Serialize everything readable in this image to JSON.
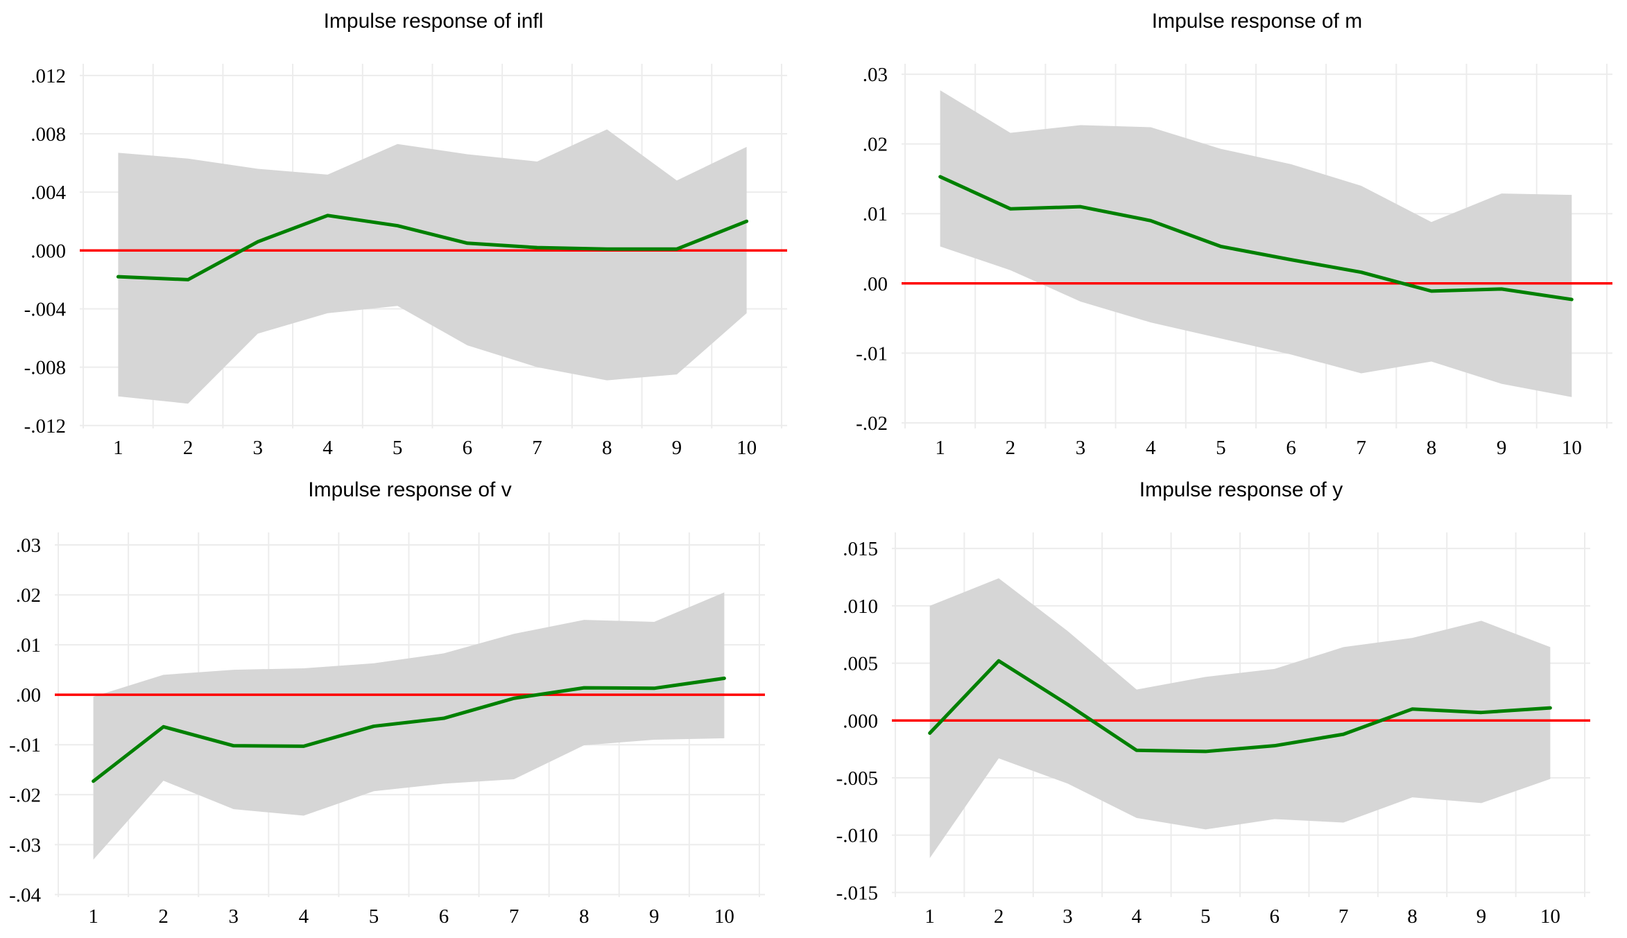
{
  "page": {
    "background": "#ffffff"
  },
  "colors": {
    "response_line": "#008000",
    "zero_line": "#ff0000",
    "confidence_band": "#d6d6d6",
    "gridline": "#ececec",
    "text": "#000000"
  },
  "x_labels": [
    "1",
    "2",
    "3",
    "4",
    "5",
    "6",
    "7",
    "8",
    "9",
    "10"
  ],
  "chart_data": [
    {
      "type": "line",
      "title": "Impulse response of infl",
      "x": [
        1,
        2,
        3,
        4,
        5,
        6,
        7,
        8,
        9,
        10
      ],
      "series": [
        {
          "name": "impulse-response",
          "values": [
            -0.0018,
            -0.002,
            0.0006,
            0.0024,
            0.0017,
            0.0005,
            0.0002,
            0.0001,
            0.0001,
            0.002
          ]
        },
        {
          "name": "confidence-upper",
          "values": [
            0.0067,
            0.0063,
            0.0056,
            0.0052,
            0.0073,
            0.0066,
            0.0061,
            0.0083,
            0.0048,
            0.0071
          ]
        },
        {
          "name": "confidence-lower",
          "values": [
            -0.01,
            -0.0105,
            -0.0057,
            -0.0043,
            -0.0038,
            -0.0065,
            -0.008,
            -0.0089,
            -0.0085,
            -0.0043
          ]
        }
      ],
      "y_ticks": [
        {
          "v": 0.012,
          "label": ".012"
        },
        {
          "v": 0.008,
          "label": ".008"
        },
        {
          "v": 0.004,
          "label": ".004"
        },
        {
          "v": 0.0,
          "label": ".000"
        },
        {
          "v": -0.004,
          "label": "-.004"
        },
        {
          "v": -0.008,
          "label": "-.008"
        },
        {
          "v": -0.012,
          "label": "-.012"
        }
      ],
      "ylim": [
        -0.0122,
        0.0128
      ],
      "xlim": [
        0.45,
        10.58
      ],
      "zero_line": true,
      "grid": true,
      "legend": "none"
    },
    {
      "type": "line",
      "title": "Impulse response of m",
      "x": [
        1,
        2,
        3,
        4,
        5,
        6,
        7,
        8,
        9,
        10
      ],
      "series": [
        {
          "name": "impulse-response",
          "values": [
            0.0153,
            0.0107,
            0.011,
            0.009,
            0.0053,
            0.0034,
            0.0016,
            -0.0011,
            -0.0008,
            -0.0023
          ]
        },
        {
          "name": "confidence-upper",
          "values": [
            0.0277,
            0.0216,
            0.0227,
            0.0224,
            0.0193,
            0.0171,
            0.014,
            0.0088,
            0.0129,
            0.0127
          ]
        },
        {
          "name": "confidence-lower",
          "values": [
            0.0053,
            0.0019,
            -0.0026,
            -0.0056,
            -0.0079,
            -0.0102,
            -0.0129,
            -0.0112,
            -0.0144,
            -0.0163
          ]
        }
      ],
      "y_ticks": [
        {
          "v": 0.03,
          "label": ".03"
        },
        {
          "v": 0.02,
          "label": ".02"
        },
        {
          "v": 0.01,
          "label": ".01"
        },
        {
          "v": 0.0,
          "label": ".00"
        },
        {
          "v": -0.01,
          "label": "-.01"
        },
        {
          "v": -0.02,
          "label": "-.02"
        }
      ],
      "ylim": [
        -0.0208,
        0.0315
      ],
      "xlim": [
        0.45,
        10.58
      ],
      "zero_line": true,
      "grid": true,
      "legend": "none"
    },
    {
      "type": "line",
      "title": "Impulse response of v",
      "x": [
        1,
        2,
        3,
        4,
        5,
        6,
        7,
        8,
        9,
        10
      ],
      "series": [
        {
          "name": "impulse-response",
          "values": [
            -0.0173,
            -0.0064,
            -0.0102,
            -0.0103,
            -0.0063,
            -0.0047,
            -0.0007,
            0.0014,
            0.0013,
            0.0033
          ]
        },
        {
          "name": "confidence-upper",
          "values": [
            -0.0004,
            0.004,
            0.005,
            0.0053,
            0.0063,
            0.0083,
            0.0122,
            0.015,
            0.0146,
            0.0205
          ]
        },
        {
          "name": "confidence-lower",
          "values": [
            -0.033,
            -0.0172,
            -0.0229,
            -0.0242,
            -0.0193,
            -0.0178,
            -0.0169,
            -0.0101,
            -0.009,
            -0.0087
          ]
        }
      ],
      "y_ticks": [
        {
          "v": 0.03,
          "label": ".03"
        },
        {
          "v": 0.02,
          "label": ".02"
        },
        {
          "v": 0.01,
          "label": ".01"
        },
        {
          "v": 0.0,
          "label": ".00"
        },
        {
          "v": -0.01,
          "label": "-.01"
        },
        {
          "v": -0.02,
          "label": "-.02"
        },
        {
          "v": -0.03,
          "label": "-.03"
        },
        {
          "v": -0.04,
          "label": "-.04"
        }
      ],
      "ylim": [
        -0.0405,
        0.0325
      ],
      "xlim": [
        0.45,
        10.58
      ],
      "zero_line": true,
      "grid": true,
      "legend": "none"
    },
    {
      "type": "line",
      "title": "Impulse response of y",
      "x": [
        1,
        2,
        3,
        4,
        5,
        6,
        7,
        8,
        9,
        10
      ],
      "series": [
        {
          "name": "impulse-response",
          "values": [
            -0.0011,
            0.0052,
            0.0014,
            -0.0026,
            -0.0027,
            -0.0022,
            -0.0012,
            0.001,
            0.0007,
            0.0011
          ]
        },
        {
          "name": "confidence-upper",
          "values": [
            0.01,
            0.0124,
            0.0078,
            0.0027,
            0.0038,
            0.0045,
            0.0064,
            0.0072,
            0.0087,
            0.0064
          ]
        },
        {
          "name": "confidence-lower",
          "values": [
            -0.012,
            -0.0033,
            -0.0055,
            -0.0085,
            -0.0095,
            -0.0086,
            -0.0089,
            -0.0067,
            -0.0072,
            -0.0051
          ]
        }
      ],
      "y_ticks": [
        {
          "v": 0.015,
          "label": ".015"
        },
        {
          "v": 0.01,
          "label": ".010"
        },
        {
          "v": 0.005,
          "label": ".005"
        },
        {
          "v": 0.0,
          "label": ".000"
        },
        {
          "v": -0.005,
          "label": "-.005"
        },
        {
          "v": -0.01,
          "label": "-.010"
        },
        {
          "v": -0.015,
          "label": "-.015"
        }
      ],
      "ylim": [
        -0.0154,
        0.0164
      ],
      "xlim": [
        0.45,
        10.58
      ],
      "zero_line": true,
      "grid": true,
      "legend": "none"
    }
  ]
}
